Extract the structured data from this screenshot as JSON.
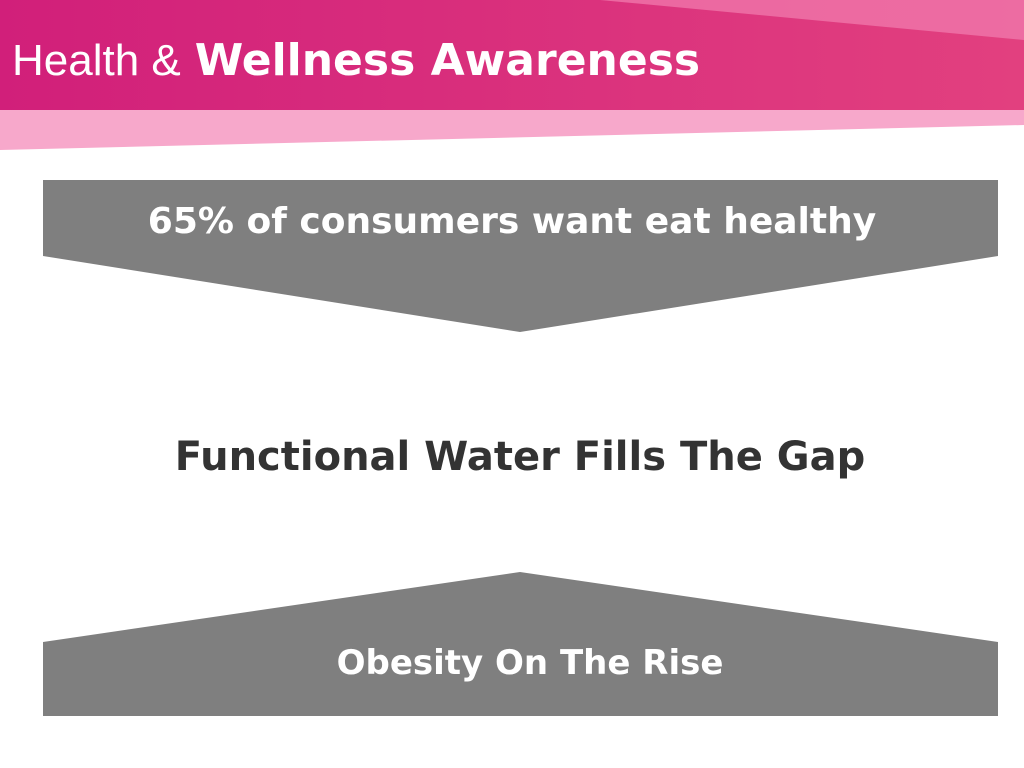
{
  "header": {
    "title_light": "Health &",
    "title_bold": "Wellness Awareness"
  },
  "top_banner": {
    "text": "65% of consumers want eat healthy"
  },
  "center": {
    "text": "Functional Water Fills The Gap"
  },
  "bottom_banner": {
    "text": "Obesity On The Rise"
  }
}
